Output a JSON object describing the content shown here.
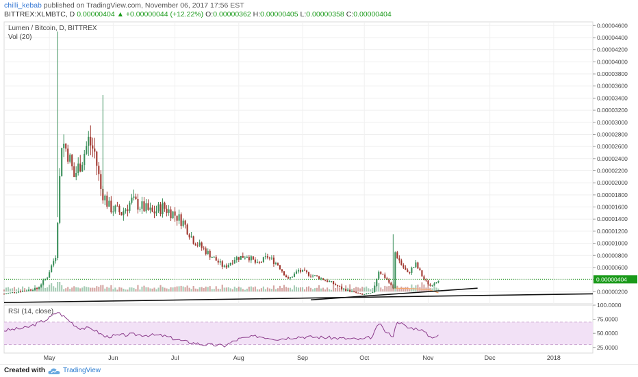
{
  "header": {
    "author": "chilli_kebab",
    "published": "published on TradingView.com, November 06, 2017 17:56 EST",
    "symbol": "BITTREX:XLMBTC, D",
    "last": "0.00000404",
    "change_arrow": "▲",
    "change": "+0.00000044 (+12.22%)",
    "o_label": "O:",
    "o_value": "0.00000362",
    "h_label": "H:",
    "h_value": "0.00000405",
    "l_label": "L:",
    "l_value": "0.00000358",
    "c_label": "C:",
    "c_value": "0.00000404"
  },
  "legend": {
    "title": "Lumen / Bitcoin, D, BITTREX",
    "vol": "Vol (20)",
    "rsi": "RSI (14, close)"
  },
  "footer": {
    "created": "Created with",
    "brand": "TradingView",
    "logo_icon": "tradingview-cloud-icon"
  },
  "colors": {
    "up": "#3a8f5a",
    "down": "#a0362e",
    "trendline": "#111111",
    "rsi_line": "#8a3a8a",
    "rsi_fill": "#f2e1f6",
    "vol_ma": "#f4a56b",
    "last_price": "#1a9a1a"
  },
  "chart_data": [
    {
      "type": "candlestick",
      "title": "Lumen / Bitcoin, D, BITTREX",
      "x_ticks": [
        "May",
        "Jun",
        "Jul",
        "Aug",
        "Sep",
        "Oct",
        "Nov",
        "Dec",
        "2018"
      ],
      "y_ticks": [
        "0.00000200",
        "0.00000400",
        "0.00000600",
        "0.00000800",
        "0.00001000",
        "0.00001200",
        "0.00001400",
        "0.00001600",
        "0.00001800",
        "0.00002000",
        "0.00002200",
        "0.00002400",
        "0.00002600",
        "0.00002800",
        "0.00003000",
        "0.00003200",
        "0.00003400",
        "0.00003600",
        "0.00003800",
        "0.00004000",
        "0.00004200",
        "0.00004400",
        "0.00004600"
      ],
      "ylim": [
        0,
        4.66e-05
      ],
      "last_price_label": "0.00000404",
      "trendlines": [
        {
          "from": [
            "2017-04-09",
            2e-07
          ],
          "to": [
            "2018-01-20",
            1.65e-06
          ]
        },
        {
          "from": [
            "2017-09-05",
            6.5e-07
          ],
          "to": [
            "2017-11-25",
            2.58e-06
          ]
        }
      ],
      "anchors": [
        [
          "2017-04-09",
          1.65e-06
        ],
        [
          "2017-04-25",
          2.5e-06
        ],
        [
          "2017-04-30",
          4.5e-06
        ],
        [
          "2017-05-04",
          8e-06
        ],
        [
          "2017-05-07",
          2.7e-05
        ],
        [
          "2017-05-10",
          2.5e-05
        ],
        [
          "2017-05-13",
          2.1e-05
        ],
        [
          "2017-05-17",
          2.4e-05
        ],
        [
          "2017-05-20",
          2.7e-05
        ],
        [
          "2017-05-23",
          2.5e-05
        ],
        [
          "2017-05-26",
          1.9e-05
        ],
        [
          "2017-05-30",
          1.6e-05
        ],
        [
          "2017-06-05",
          1.5e-05
        ],
        [
          "2017-06-10",
          1.7e-05
        ],
        [
          "2017-06-15",
          1.6e-05
        ],
        [
          "2017-06-20",
          1.5e-05
        ],
        [
          "2017-06-25",
          1.6e-05
        ],
        [
          "2017-06-30",
          1.5e-05
        ],
        [
          "2017-07-05",
          1.35e-05
        ],
        [
          "2017-07-10",
          1.05e-05
        ],
        [
          "2017-07-15",
          9e-06
        ],
        [
          "2017-07-20",
          7.5e-06
        ],
        [
          "2017-07-25",
          6e-06
        ],
        [
          "2017-07-30",
          7.5e-06
        ],
        [
          "2017-08-05",
          8e-06
        ],
        [
          "2017-08-10",
          6.5e-06
        ],
        [
          "2017-08-15",
          7.8e-06
        ],
        [
          "2017-08-20",
          6.5e-06
        ],
        [
          "2017-08-25",
          4e-06
        ],
        [
          "2017-08-30",
          5.5e-06
        ],
        [
          "2017-09-05",
          4.8e-06
        ],
        [
          "2017-09-10",
          4.2e-06
        ],
        [
          "2017-09-15",
          3.5e-06
        ],
        [
          "2017-09-20",
          2.5e-06
        ],
        [
          "2017-09-25",
          2e-06
        ],
        [
          "2017-09-30",
          1.5e-06
        ],
        [
          "2017-10-05",
          1.8e-06
        ],
        [
          "2017-10-08",
          5.5e-06
        ],
        [
          "2017-10-12",
          4e-06
        ],
        [
          "2017-10-15",
          2.5e-06
        ],
        [
          "2017-10-16",
          8.5e-06
        ],
        [
          "2017-10-19",
          6.5e-06
        ],
        [
          "2017-10-22",
          5e-06
        ],
        [
          "2017-10-26",
          6.5e-06
        ],
        [
          "2017-10-30",
          4e-06
        ],
        [
          "2017-11-02",
          3e-06
        ],
        [
          "2017-11-06",
          4.04e-06
        ]
      ]
    },
    {
      "type": "line",
      "title": "RSI (14, close)",
      "y_ticks": [
        "25.0000",
        "50.0000",
        "75.0000",
        "100.0000"
      ],
      "ylim": [
        15,
        100
      ],
      "band": [
        30,
        70
      ],
      "last_value": 45,
      "anchors": [
        [
          "2017-04-09",
          55
        ],
        [
          "2017-04-20",
          60
        ],
        [
          "2017-04-30",
          75
        ],
        [
          "2017-05-05",
          88
        ],
        [
          "2017-05-08",
          80
        ],
        [
          "2017-05-15",
          60
        ],
        [
          "2017-05-22",
          58
        ],
        [
          "2017-05-28",
          44
        ],
        [
          "2017-06-10",
          48
        ],
        [
          "2017-06-25",
          46
        ],
        [
          "2017-07-05",
          36
        ],
        [
          "2017-07-15",
          30
        ],
        [
          "2017-07-25",
          28
        ],
        [
          "2017-08-01",
          40
        ],
        [
          "2017-08-10",
          45
        ],
        [
          "2017-08-20",
          40
        ],
        [
          "2017-08-30",
          44
        ],
        [
          "2017-09-10",
          43
        ],
        [
          "2017-09-20",
          41
        ],
        [
          "2017-09-30",
          39
        ],
        [
          "2017-10-05",
          44
        ],
        [
          "2017-10-08",
          68
        ],
        [
          "2017-10-12",
          50
        ],
        [
          "2017-10-15",
          46
        ],
        [
          "2017-10-17",
          72
        ],
        [
          "2017-10-22",
          60
        ],
        [
          "2017-10-28",
          58
        ],
        [
          "2017-11-02",
          44
        ],
        [
          "2017-11-06",
          45
        ]
      ]
    }
  ]
}
